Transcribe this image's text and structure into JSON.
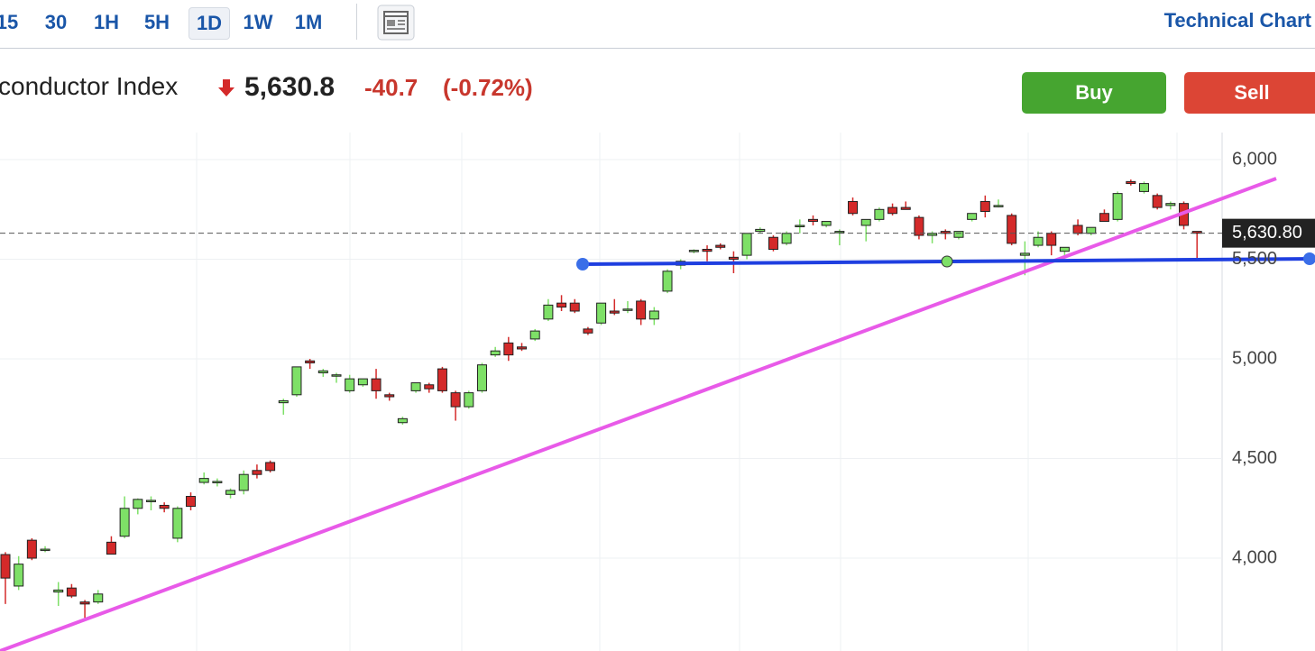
{
  "toolbar": {
    "intervals": [
      "15",
      "30",
      "1H",
      "5H",
      "1D",
      "1W",
      "1M"
    ],
    "active": 4,
    "link": "Technical Chart"
  },
  "header": {
    "name": "conductor Index",
    "price": "5,630.8",
    "change": "-40.7",
    "change_pct": "(-0.72%)",
    "buy": "Buy",
    "sell": "Sell"
  },
  "chart_data": {
    "type": "candlestick",
    "open": [
      4018,
      3860,
      4090,
      4040,
      3830,
      3850,
      3780,
      3780,
      4080,
      4110,
      4250,
      4290,
      4265,
      4100,
      4310,
      4380,
      4380,
      4320,
      4340,
      4440,
      4480,
      4780,
      4820,
      4990,
      4930,
      4920,
      4840,
      4870,
      4900,
      4820,
      4680,
      4840,
      4870,
      4950,
      4830,
      4760,
      4840,
      5020,
      5080,
      5060,
      5100,
      5200,
      5280,
      5280,
      5150,
      5180,
      5240,
      5250,
      5290,
      5200,
      5340,
      5470,
      5540,
      5550,
      5570,
      5510,
      5520,
      5640,
      5610,
      5580,
      5670,
      5700,
      5670,
      5640,
      5790,
      5670,
      5700,
      5760,
      5760,
      5710,
      5620,
      5640,
      5610,
      5700,
      5790,
      5770,
      5720,
      5520,
      5570,
      5630,
      5540,
      5670,
      5630,
      5730,
      5700,
      5890,
      5840,
      5820,
      5770,
      5780,
      5640
    ],
    "high": [
      4030,
      4010,
      4100,
      4060,
      3880,
      3870,
      3790,
      3840,
      4110,
      4310,
      4300,
      4310,
      4280,
      4260,
      4330,
      4430,
      4400,
      4350,
      4440,
      4470,
      4490,
      4800,
      4960,
      5000,
      4950,
      4930,
      4920,
      4900,
      4950,
      4830,
      4710,
      4880,
      4880,
      4960,
      4840,
      4840,
      4980,
      5060,
      5110,
      5080,
      5150,
      5300,
      5320,
      5300,
      5160,
      5280,
      5300,
      5290,
      5300,
      5260,
      5450,
      5500,
      5550,
      5570,
      5580,
      5540,
      5630,
      5660,
      5620,
      5640,
      5700,
      5720,
      5690,
      5650,
      5810,
      5700,
      5760,
      5780,
      5790,
      5720,
      5640,
      5650,
      5640,
      5730,
      5820,
      5800,
      5730,
      5590,
      5640,
      5640,
      5560,
      5700,
      5660,
      5750,
      5840,
      5900,
      5890,
      5830,
      5790,
      5790,
      5640
    ],
    "low": [
      3770,
      3840,
      3990,
      4030,
      3760,
      3800,
      3700,
      3770,
      4030,
      4100,
      4220,
      4240,
      4230,
      4080,
      4240,
      4370,
      4360,
      4300,
      4320,
      4400,
      4430,
      4720,
      4810,
      4950,
      4910,
      4880,
      4830,
      4860,
      4800,
      4790,
      4670,
      4830,
      4830,
      4830,
      4690,
      4750,
      4830,
      5010,
      4990,
      5040,
      5090,
      5190,
      5240,
      5230,
      5120,
      5170,
      5220,
      5230,
      5170,
      5170,
      5330,
      5450,
      5530,
      5490,
      5550,
      5430,
      5500,
      5630,
      5540,
      5570,
      5630,
      5670,
      5660,
      5570,
      5720,
      5590,
      5690,
      5720,
      5750,
      5600,
      5580,
      5600,
      5600,
      5690,
      5710,
      5760,
      5570,
      5420,
      5560,
      5520,
      5520,
      5620,
      5620,
      5690,
      5690,
      5870,
      5830,
      5750,
      5750,
      5650,
      5500
    ],
    "close": [
      3900,
      3970,
      4000,
      4045,
      3840,
      3810,
      3770,
      3820,
      4020,
      4250,
      4295,
      4290,
      4250,
      4250,
      4260,
      4400,
      4385,
      4340,
      4420,
      4420,
      4440,
      4790,
      4960,
      4980,
      4940,
      4920,
      4900,
      4900,
      4840,
      4810,
      4700,
      4880,
      4850,
      4840,
      4760,
      4830,
      4970,
      5040,
      5020,
      5050,
      5140,
      5270,
      5260,
      5240,
      5130,
      5280,
      5230,
      5250,
      5200,
      5240,
      5440,
      5490,
      5545,
      5540,
      5560,
      5500,
      5630,
      5650,
      5550,
      5630,
      5670,
      5690,
      5690,
      5640,
      5730,
      5700,
      5750,
      5730,
      5750,
      5620,
      5630,
      5630,
      5640,
      5730,
      5740,
      5770,
      5580,
      5530,
      5610,
      5570,
      5560,
      5630,
      5660,
      5690,
      5830,
      5880,
      5880,
      5760,
      5780,
      5670,
      5630.8
    ],
    "ylim": [
      3534,
      6136
    ],
    "yticks": [
      {
        "value": 4000,
        "label": "4,000"
      },
      {
        "value": 4500,
        "label": "4,500"
      },
      {
        "value": 5000,
        "label": "5,000"
      },
      {
        "value": 5500,
        "label": "5,500"
      },
      {
        "value": 6000,
        "label": "6,000"
      }
    ],
    "last_price": {
      "value": 5630.8,
      "label": "5,630.80"
    },
    "up_color": "#7ee067",
    "down_color": "#d42a2a",
    "grid": true
  }
}
